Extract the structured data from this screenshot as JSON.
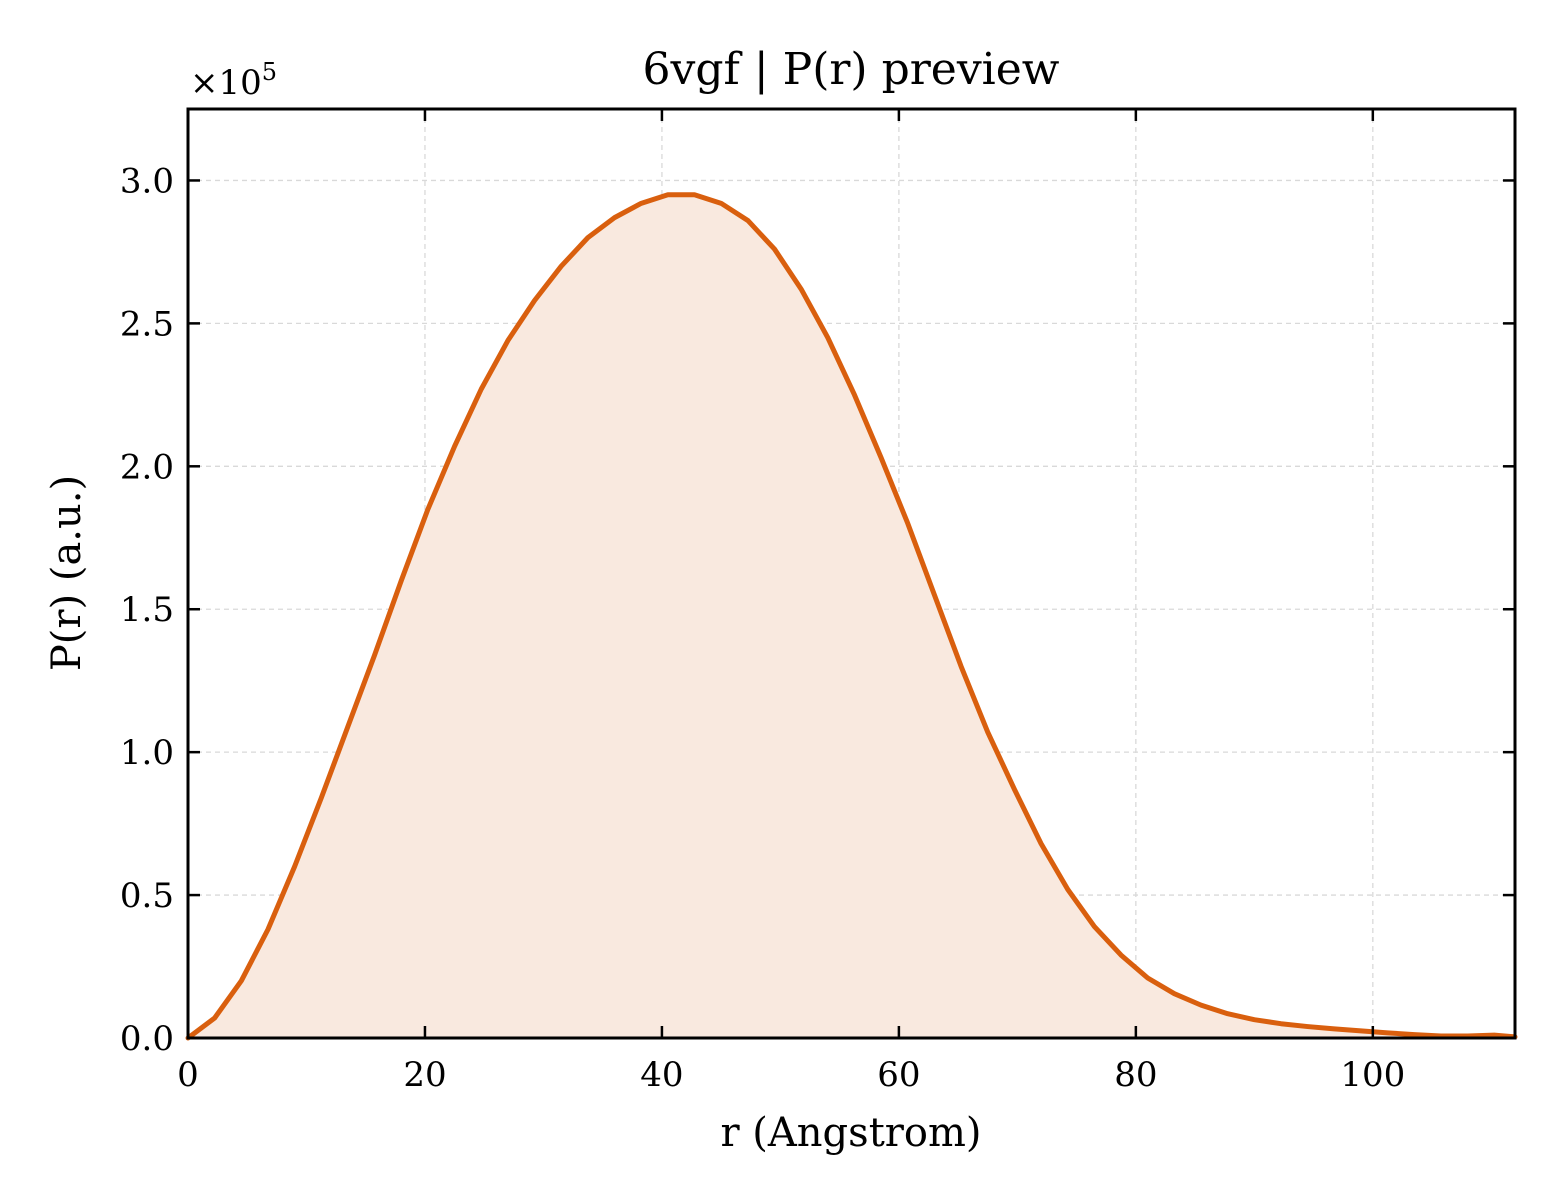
{
  "chart_data": {
    "type": "area",
    "title": "6vgf | P(r) preview",
    "xlabel": "r (Angstrom)",
    "ylabel": "P(r) (a.u.)",
    "y_multiplier": "×10",
    "y_multiplier_exp": "5",
    "xlim": [
      0,
      112
    ],
    "ylim": [
      0,
      3.25
    ],
    "xticks": [
      0,
      20,
      40,
      60,
      80,
      100
    ],
    "xtick_labels": [
      "0",
      "20",
      "40",
      "60",
      "80",
      "100"
    ],
    "yticks": [
      0,
      0.5,
      1.0,
      1.5,
      2.0,
      2.5,
      3.0
    ],
    "ytick_labels": [
      "0.0",
      "0.5",
      "1.0",
      "1.5",
      "2.0",
      "2.5",
      "3.0"
    ],
    "grid": true,
    "colors": {
      "line": "#d95f0e",
      "fill": "#f9e9df",
      "grid": "#d9d9d9",
      "axes": "#000000"
    },
    "series": [
      {
        "x": [
          0,
          2.25,
          4.5,
          6.75,
          9,
          11.25,
          13.5,
          15.75,
          18,
          20.25,
          22.5,
          24.75,
          27,
          29.25,
          31.5,
          33.75,
          36,
          38.25,
          40.5,
          42.75,
          45,
          47.25,
          49.5,
          51.75,
          54,
          56.25,
          58.5,
          60.75,
          63,
          65.25,
          67.5,
          69.75,
          72,
          74.25,
          76.5,
          78.75,
          81,
          83.25,
          85.5,
          87.75,
          90,
          92.25,
          94.5,
          96.75,
          99,
          101.25,
          103.5,
          105.75,
          108,
          110.25,
          112
        ],
        "y": [
          0.0,
          0.07,
          0.2,
          0.38,
          0.6,
          0.84,
          1.09,
          1.34,
          1.6,
          1.85,
          2.07,
          2.27,
          2.44,
          2.58,
          2.7,
          2.8,
          2.87,
          2.92,
          2.95,
          2.95,
          2.92,
          2.86,
          2.76,
          2.62,
          2.45,
          2.25,
          2.03,
          1.8,
          1.55,
          1.3,
          1.07,
          0.87,
          0.68,
          0.52,
          0.39,
          0.29,
          0.21,
          0.155,
          0.115,
          0.085,
          0.064,
          0.05,
          0.04,
          0.032,
          0.025,
          0.018,
          0.012,
          0.007,
          0.007,
          0.01,
          0.004
        ]
      }
    ]
  }
}
